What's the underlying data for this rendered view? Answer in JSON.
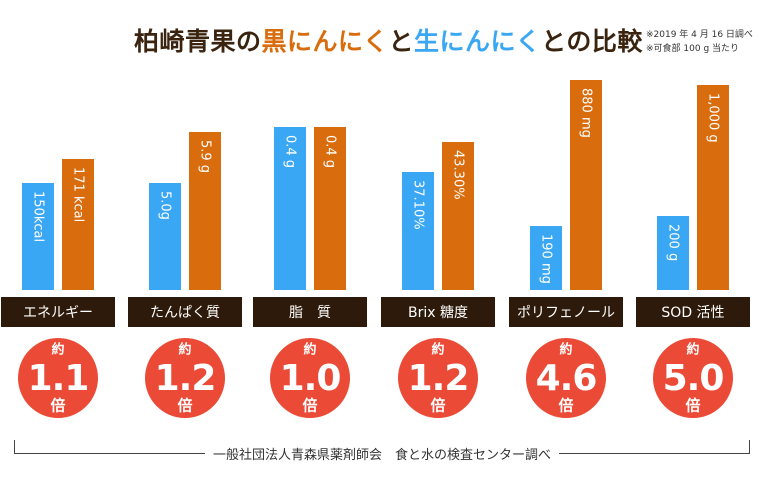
{
  "title": {
    "part1": "柏崎青果の",
    "part2": "黒にんにく",
    "part3": "と",
    "part4": "生にんにく",
    "part5": "との比較"
  },
  "notes": [
    "※2019 年 4 月 16 日調べ",
    "※可食部 100 g 当たり"
  ],
  "footer": "一般社団法人青森県薬剤師会　食と水の検査センター調べ",
  "colors": {
    "black_garlic": "#d96d0e",
    "raw_garlic": "#3aa7f4",
    "label_bg": "#2e1a0a",
    "badge": "#ea4a36",
    "title_dark": "#3a2410"
  },
  "chart_data": {
    "type": "bar",
    "categories": [
      "エネルギー",
      "たんぱく質",
      "脂　質",
      "Brix 糖度",
      "ポリフェノール",
      "SOD 活性"
    ],
    "series": [
      {
        "values": [
          150,
          5.0,
          0.4,
          37.1,
          190,
          200
        ],
        "labels": [
          "150kcal",
          "5.0g",
          "0.4 g",
          "37.10%",
          "190 mg",
          "200 g"
        ]
      },
      {
        "values": [
          171,
          5.9,
          0.4,
          43.3,
          880,
          1000
        ],
        "labels": [
          "171 kcal",
          "5.9 g",
          "0.4 g",
          "43.30%",
          "880 mg",
          "1,000 g"
        ]
      }
    ],
    "ratios": [
      "1.1",
      "1.2",
      "1.0",
      "1.2",
      "4.6",
      "5.0"
    ],
    "ratio_prefix": "約",
    "ratio_suffix": "倍"
  }
}
